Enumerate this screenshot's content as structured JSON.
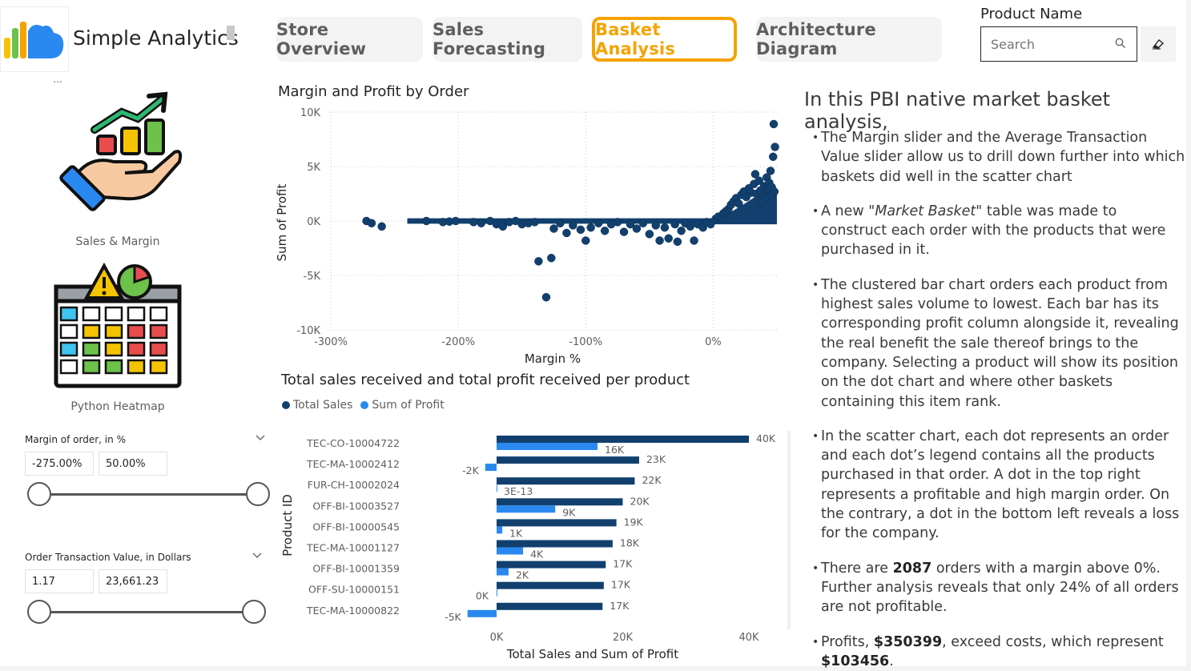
{
  "app": {
    "name": "Simple Analytics"
  },
  "tabs": [
    {
      "label": "Store Overview",
      "active": false
    },
    {
      "label": "Sales Forecasting",
      "active": false
    },
    {
      "label": "Basket Analysis",
      "active": true
    },
    {
      "label": "Architecture Diagram",
      "active": false
    }
  ],
  "product_filter": {
    "label": "Product Name",
    "placeholder": "Search"
  },
  "left_nav": {
    "ellipsis": "...",
    "cards": [
      {
        "label": "Sales & Margin",
        "icon": "hand-growth-chart-icon"
      },
      {
        "label": "Python Heatmap",
        "icon": "heatmap-calendar-icon"
      }
    ]
  },
  "slicers": {
    "margin": {
      "title": "Margin of order, in %",
      "min": "-275.00%",
      "max": "50.00%"
    },
    "otv": {
      "title": "Order Transaction Value, in Dollars",
      "min": "1.17",
      "max": "23,661.23"
    }
  },
  "chart_data": [
    {
      "type": "scatter",
      "title": "Margin and Profit by Order",
      "xlabel": "Margin %",
      "ylabel": "Sum of Profit",
      "xlim": [
        -300,
        50
      ],
      "ylim": [
        -10000,
        10000
      ],
      "xticks": [
        "-300%",
        "-200%",
        "-100%",
        "0%"
      ],
      "yticks": [
        "10K",
        "5K",
        "0K",
        "-5K",
        "-10K"
      ],
      "grid": true,
      "color": "#12406e",
      "points": [
        [
          -272,
          0
        ],
        [
          -268,
          -200
        ],
        [
          -260,
          -500
        ],
        [
          -225,
          0
        ],
        [
          -212,
          -100
        ],
        [
          -207,
          -50
        ],
        [
          -202,
          0
        ],
        [
          -188,
          -100
        ],
        [
          -182,
          -200
        ],
        [
          -175,
          0
        ],
        [
          -170,
          -300
        ],
        [
          -165,
          -500
        ],
        [
          -160,
          -100
        ],
        [
          -155,
          0
        ],
        [
          -150,
          -300
        ],
        [
          -145,
          -200
        ],
        [
          -140,
          -100
        ],
        [
          -137,
          -3700
        ],
        [
          -131,
          -7000
        ],
        [
          -127,
          -3400
        ],
        [
          -125,
          -700
        ],
        [
          -120,
          -200
        ],
        [
          -115,
          -1100
        ],
        [
          -110,
          -400
        ],
        [
          -104,
          -800
        ],
        [
          -100,
          -1800
        ],
        [
          -96,
          -600
        ],
        [
          -90,
          -200
        ],
        [
          -85,
          -900
        ],
        [
          -80,
          -300
        ],
        [
          -75,
          -100
        ],
        [
          -70,
          -1000
        ],
        [
          -65,
          -300
        ],
        [
          -60,
          -700
        ],
        [
          -55,
          -200
        ],
        [
          -50,
          -1200
        ],
        [
          -45,
          -400
        ],
        [
          -42,
          -1800
        ],
        [
          -38,
          -600
        ],
        [
          -35,
          -1600
        ],
        [
          -30,
          -300
        ],
        [
          -28,
          -1900
        ],
        [
          -25,
          -900
        ],
        [
          -22,
          -200
        ],
        [
          -18,
          -500
        ],
        [
          -15,
          -1800
        ],
        [
          -12,
          -300
        ],
        [
          -8,
          -600
        ],
        [
          -5,
          -100
        ],
        [
          -2,
          -300
        ],
        [
          2,
          200
        ],
        [
          4,
          400
        ],
        [
          6,
          300
        ],
        [
          8,
          700
        ],
        [
          10,
          900
        ],
        [
          12,
          1100
        ],
        [
          14,
          1500
        ],
        [
          16,
          1800
        ],
        [
          18,
          2100
        ],
        [
          20,
          1600
        ],
        [
          22,
          2400
        ],
        [
          24,
          2700
        ],
        [
          26,
          2200
        ],
        [
          28,
          3000
        ],
        [
          30,
          2600
        ],
        [
          32,
          3400
        ],
        [
          33,
          4300
        ],
        [
          34,
          2500
        ],
        [
          36,
          3700
        ],
        [
          37,
          2800
        ],
        [
          38,
          1700
        ],
        [
          40,
          3200
        ],
        [
          41,
          2100
        ],
        [
          42,
          4000
        ],
        [
          43,
          2900
        ],
        [
          44,
          3500
        ],
        [
          45,
          4600
        ],
        [
          46,
          3100
        ],
        [
          47,
          5900
        ],
        [
          47.5,
          8900
        ],
        [
          48,
          2700
        ],
        [
          48.5,
          6800
        ]
      ],
      "band_from": 0
    },
    {
      "type": "bar",
      "orientation": "horizontal",
      "title": "Total sales received and total profit received per product",
      "xlabel": "Total Sales and Sum of Profit",
      "ylabel": "Product ID",
      "xlim": [
        -10000,
        42000
      ],
      "xticks": [
        "0K",
        "20K",
        "40K"
      ],
      "legend": "top-left",
      "categories": [
        "TEC-CO-10004722",
        "TEC-MA-10002412",
        "FUR-CH-10002024",
        "OFF-BI-10003527",
        "OFF-BI-10000545",
        "TEC-MA-10001127",
        "OFF-BI-10001359",
        "OFF-SU-10000151",
        "TEC-MA-10000822"
      ],
      "series": [
        {
          "name": "Total Sales",
          "color": "#12406e",
          "values": [
            40000,
            22600,
            21900,
            20000,
            19000,
            18400,
            17300,
            17000,
            16800
          ],
          "labels": [
            "40K",
            "23K",
            "22K",
            "20K",
            "19K",
            "18K",
            "17K",
            "17K",
            "17K"
          ]
        },
        {
          "name": "Sum of Profit",
          "color": "#2a89f0",
          "values": [
            16000,
            -1800,
            0,
            9300,
            900,
            4200,
            1900,
            0,
            -4600
          ],
          "labels": [
            "16K",
            "-2K",
            "3E-13",
            "9K",
            "1K",
            "4K",
            "2K",
            "0K",
            "-5K"
          ]
        }
      ]
    }
  ],
  "panel": {
    "title": "In this PBI native market basket analysis,",
    "b1": "The Margin slider and the Average Transaction Value slider allow us to drill down further into which baskets did well in the scatter chart",
    "b2_pre": "A new \"",
    "b2_em": "Market Basket",
    "b2_post": "\" table was made to construct each order with the products that were purchased in it.",
    "b3": "The clustered bar chart orders each product from highest sales volume to lowest. Each bar has its corresponding profit column alongside it, revealing the real benefit the sale thereof brings to the company. Selecting a product will show its position on the dot chart and where other baskets containing this item rank.",
    "b4": "In the scatter chart, each dot represents an order and each dot’s legend contains all the products purchased in that order. A dot in the top right represents a profitable and high margin order. On the contrary, a dot in the bottom left reveals a loss for the company.",
    "b5_pre": "There are ",
    "b5_num": "2087",
    "b5_post": " orders with a margin above 0%. Further analysis reveals that only 24% of all orders are not profitable.",
    "b6_pre": "Profits, ",
    "b6_profit": "$350399",
    "b6_mid": ", exceed costs, which represent ",
    "b6_cost": "$103456",
    "b6_end": "."
  }
}
